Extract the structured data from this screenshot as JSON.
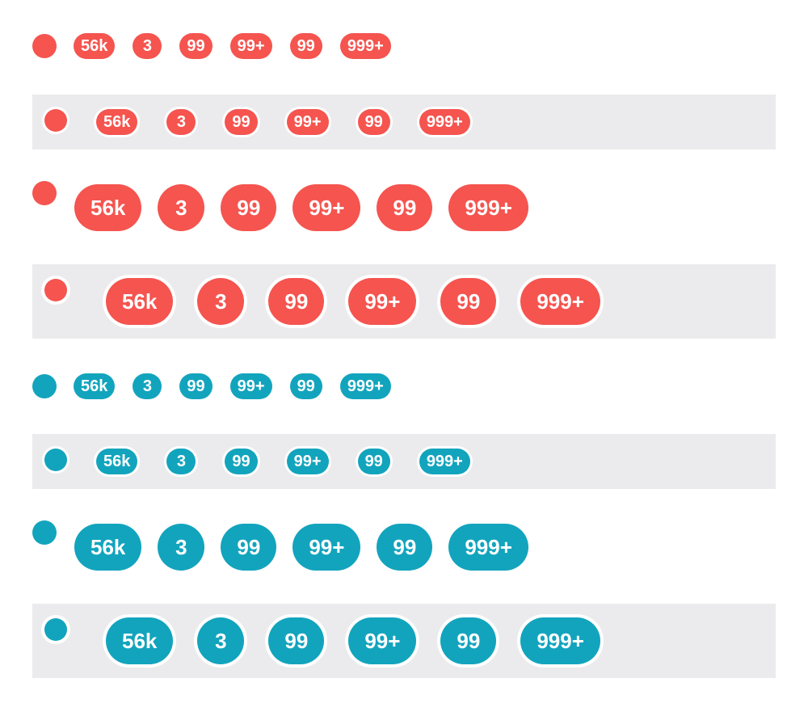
{
  "colors": {
    "red": "#f5544f",
    "teal": "#12a4bd",
    "row_bg": "#ebebed"
  },
  "badges": [
    "56k",
    "3",
    "99",
    "99+",
    "99",
    "999+"
  ],
  "rows": [
    {
      "color": "red",
      "size": "sm",
      "ring": false
    },
    {
      "color": "red",
      "size": "sm",
      "ring": true
    },
    {
      "color": "red",
      "size": "lg",
      "ring": false
    },
    {
      "color": "red",
      "size": "lg",
      "ring": true
    },
    {
      "color": "teal",
      "size": "sm",
      "ring": false
    },
    {
      "color": "teal",
      "size": "sm",
      "ring": true
    },
    {
      "color": "teal",
      "size": "lg",
      "ring": false
    },
    {
      "color": "teal",
      "size": "lg",
      "ring": true
    }
  ]
}
